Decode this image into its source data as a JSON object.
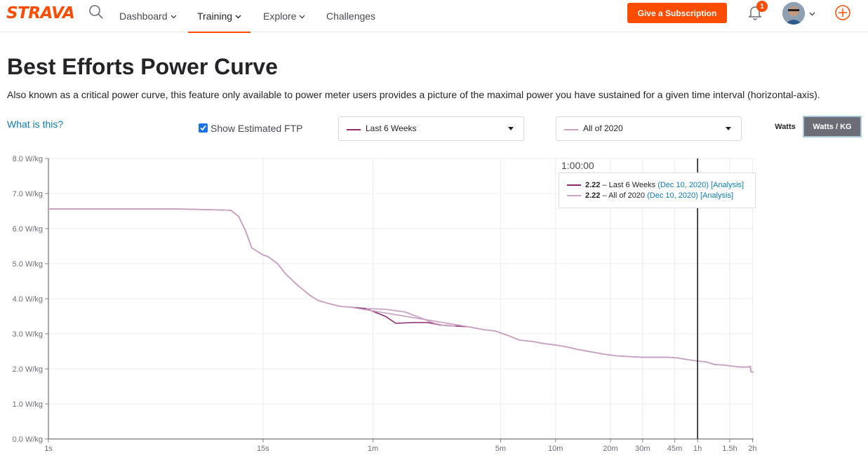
{
  "header": {
    "logo_text": "STRAVA",
    "nav": [
      {
        "label": "Dashboard"
      },
      {
        "label": "Training"
      },
      {
        "label": "Explore"
      },
      {
        "label": "Challenges"
      }
    ],
    "subscribe_label": "Give a Subscription",
    "notification_count": "1",
    "accent_color": "#fc4c02"
  },
  "page": {
    "title": "Best Efforts Power Curve",
    "description": "Also known as a critical power curve, this feature only available to power meter users provides a picture of the maximal power you have sustained for a given time interval (horizontal-axis).",
    "help_link": "What is this?"
  },
  "controls": {
    "ftp_checkbox_label": "Show Estimated FTP",
    "ftp_checked": true,
    "range_primary": {
      "value": "Last 6 Weeks",
      "color": "#8c2a6d"
    },
    "range_secondary": {
      "value": "All of 2020",
      "color": "#c9a3c4"
    },
    "unit_watts": "Watts",
    "unit_wkg": "Watts / KG",
    "unit_selected": "Watts / KG"
  },
  "tooltip": {
    "time": "1:00:00",
    "rows": [
      {
        "value": "2.22",
        "dash": "–",
        "series": "Last 6 Weeks",
        "date": "(Dec 10, 2020)",
        "link": "[Analysis]",
        "color": "#8c2a6d"
      },
      {
        "value": "2.22",
        "dash": "–",
        "series": "All of 2020",
        "date": "(Dec 10, 2020)",
        "link": "[Analysis]",
        "color": "#c9a3c4"
      }
    ]
  },
  "chart_data": {
    "type": "line",
    "x_scale": "log",
    "xlim_seconds": [
      1,
      7300
    ],
    "ylim": [
      0,
      8
    ],
    "grid": true,
    "y_ticks": [
      {
        "v": 0,
        "label": "0.0 W/kg"
      },
      {
        "v": 1,
        "label": "1.0 W/kg"
      },
      {
        "v": 2,
        "label": "2.0 W/kg"
      },
      {
        "v": 3,
        "label": "3.0 W/kg"
      },
      {
        "v": 4,
        "label": "4.0 W/kg"
      },
      {
        "v": 5,
        "label": "5.0 W/kg"
      },
      {
        "v": 6,
        "label": "6.0 W/kg"
      },
      {
        "v": 7,
        "label": "7.0 W/kg"
      },
      {
        "v": 8,
        "label": "8.0 W/kg"
      }
    ],
    "x_ticks": [
      {
        "t": 1,
        "label": "1s"
      },
      {
        "t": 15,
        "label": "15s"
      },
      {
        "t": 60,
        "label": "1m"
      },
      {
        "t": 300,
        "label": "5m"
      },
      {
        "t": 600,
        "label": "10m"
      },
      {
        "t": 1200,
        "label": "20m"
      },
      {
        "t": 1800,
        "label": "30m"
      },
      {
        "t": 2700,
        "label": "45m"
      },
      {
        "t": 3600,
        "label": "1h"
      },
      {
        "t": 5400,
        "label": "1.5h"
      },
      {
        "t": 7200,
        "label": "2h"
      }
    ],
    "cursor_seconds": 3600,
    "series": [
      {
        "name": "Last 6 Weeks",
        "color": "#8c2a6d",
        "points": [
          [
            1,
            6.56
          ],
          [
            5,
            6.56
          ],
          [
            9,
            6.53
          ],
          [
            10,
            6.52
          ],
          [
            11,
            6.35
          ],
          [
            12,
            5.95
          ],
          [
            13,
            5.45
          ],
          [
            15,
            5.25
          ],
          [
            16,
            5.2
          ],
          [
            18,
            5.0
          ],
          [
            20,
            4.7
          ],
          [
            23,
            4.4
          ],
          [
            27,
            4.1
          ],
          [
            30,
            3.95
          ],
          [
            35,
            3.85
          ],
          [
            40,
            3.78
          ],
          [
            45,
            3.76
          ],
          [
            55,
            3.72
          ],
          [
            70,
            3.5
          ],
          [
            80,
            3.3
          ],
          [
            100,
            3.32
          ],
          [
            120,
            3.32
          ],
          [
            140,
            3.25
          ],
          [
            170,
            3.22
          ],
          [
            200,
            3.2
          ],
          [
            240,
            3.12
          ],
          [
            280,
            3.08
          ],
          [
            330,
            2.95
          ],
          [
            380,
            2.82
          ],
          [
            450,
            2.78
          ],
          [
            520,
            2.72
          ],
          [
            600,
            2.68
          ],
          [
            700,
            2.62
          ],
          [
            800,
            2.55
          ],
          [
            950,
            2.48
          ],
          [
            1100,
            2.42
          ],
          [
            1300,
            2.37
          ],
          [
            1500,
            2.35
          ],
          [
            1800,
            2.33
          ],
          [
            2100,
            2.33
          ],
          [
            2500,
            2.33
          ],
          [
            2800,
            2.31
          ],
          [
            3200,
            2.26
          ],
          [
            3600,
            2.22
          ],
          [
            4000,
            2.2
          ],
          [
            4500,
            2.12
          ],
          [
            5000,
            2.11
          ],
          [
            5500,
            2.08
          ],
          [
            6200,
            2.05
          ],
          [
            6800,
            2.05
          ],
          [
            7000,
            2.07
          ],
          [
            7050,
            1.92
          ],
          [
            7300,
            1.9
          ]
        ]
      },
      {
        "name": "All of 2020",
        "color": "#c9a3c4",
        "points": [
          [
            1,
            6.56
          ],
          [
            5,
            6.56
          ],
          [
            9,
            6.53
          ],
          [
            10,
            6.52
          ],
          [
            11,
            6.35
          ],
          [
            12,
            5.95
          ],
          [
            13,
            5.45
          ],
          [
            15,
            5.25
          ],
          [
            16,
            5.2
          ],
          [
            18,
            5.0
          ],
          [
            20,
            4.7
          ],
          [
            23,
            4.4
          ],
          [
            27,
            4.1
          ],
          [
            30,
            3.95
          ],
          [
            35,
            3.85
          ],
          [
            40,
            3.78
          ],
          [
            45,
            3.76
          ],
          [
            55,
            3.72
          ],
          [
            70,
            3.7
          ],
          [
            90,
            3.62
          ],
          [
            110,
            3.45
          ],
          [
            130,
            3.3
          ],
          [
            150,
            3.23
          ],
          [
            170,
            3.22
          ],
          [
            200,
            3.2
          ],
          [
            240,
            3.12
          ],
          [
            280,
            3.08
          ],
          [
            330,
            2.95
          ],
          [
            380,
            2.82
          ],
          [
            450,
            2.78
          ],
          [
            520,
            2.72
          ],
          [
            600,
            2.68
          ],
          [
            700,
            2.62
          ],
          [
            800,
            2.55
          ],
          [
            950,
            2.48
          ],
          [
            1100,
            2.42
          ],
          [
            1300,
            2.37
          ],
          [
            1500,
            2.35
          ],
          [
            1800,
            2.33
          ],
          [
            2100,
            2.33
          ],
          [
            2500,
            2.33
          ],
          [
            2800,
            2.31
          ],
          [
            3200,
            2.26
          ],
          [
            3600,
            2.22
          ],
          [
            4000,
            2.2
          ],
          [
            4500,
            2.12
          ],
          [
            5000,
            2.11
          ],
          [
            5500,
            2.08
          ],
          [
            6200,
            2.05
          ],
          [
            6800,
            2.05
          ],
          [
            7000,
            2.07
          ],
          [
            7050,
            1.92
          ],
          [
            7300,
            1.9
          ]
        ]
      }
    ]
  }
}
